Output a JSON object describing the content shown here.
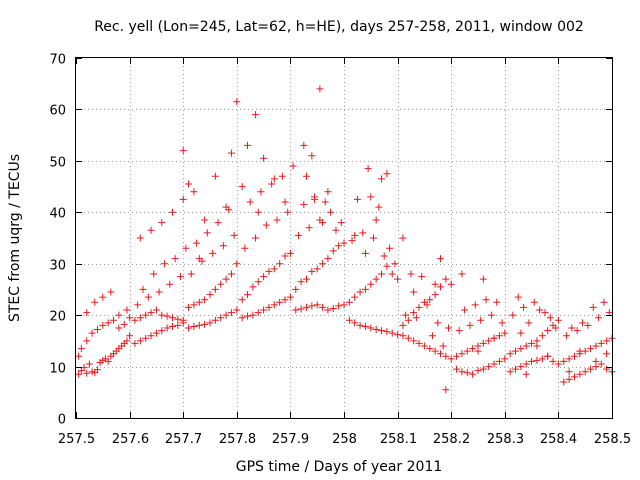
{
  "chart_data": {
    "type": "scatter",
    "title": "Rec. yell (Lon=245, Lat=62, h=HE), days 257-258, 2011, window 002",
    "xlabel": "GPS time / Days of year 2011",
    "ylabel": "STEC from uqrg / TECUs",
    "xlim": [
      257.5,
      258.5
    ],
    "ylim": [
      0,
      70
    ],
    "xticks": [
      257.5,
      257.6,
      257.7,
      257.8,
      257.9,
      258.0,
      258.1,
      258.2,
      258.3,
      258.4,
      258.5
    ],
    "xtick_labels": [
      "257.5",
      "257.6",
      "257.7",
      "257.8",
      "257.9",
      "258",
      "258.1",
      "258.2",
      "258.3",
      "258.4",
      "258.5"
    ],
    "yticks": [
      0,
      10,
      20,
      30,
      40,
      50,
      60,
      70
    ],
    "ytick_labels": [
      "0",
      "10",
      "20",
      "30",
      "40",
      "50",
      "60",
      "70"
    ],
    "grid": true,
    "marker": "+",
    "color": "#e41a1c",
    "series": [
      {
        "name": "STEC",
        "x": [
          257.505,
          257.51,
          257.515,
          257.52,
          257.525,
          257.53,
          257.535,
          257.54,
          257.545,
          257.55,
          257.555,
          257.56,
          257.565,
          257.57,
          257.575,
          257.58,
          257.585,
          257.59,
          257.595,
          257.6,
          257.51,
          257.52,
          257.53,
          257.54,
          257.55,
          257.56,
          257.57,
          257.58,
          257.59,
          257.6,
          257.505,
          257.52,
          257.535,
          257.55,
          257.565,
          257.58,
          257.595,
          257.61,
          257.62,
          257.63,
          257.64,
          257.65,
          257.66,
          257.67,
          257.68,
          257.69,
          257.7,
          257.61,
          257.62,
          257.63,
          257.64,
          257.65,
          257.66,
          257.67,
          257.68,
          257.69,
          257.7,
          257.615,
          257.635,
          257.655,
          257.675,
          257.695,
          257.625,
          257.645,
          257.665,
          257.685,
          257.705,
          257.62,
          257.64,
          257.66,
          257.68,
          257.7,
          257.71,
          257.71,
          257.72,
          257.73,
          257.74,
          257.75,
          257.76,
          257.77,
          257.78,
          257.79,
          257.8,
          257.71,
          257.72,
          257.73,
          257.74,
          257.75,
          257.76,
          257.77,
          257.78,
          257.79,
          257.8,
          257.715,
          257.735,
          257.755,
          257.775,
          257.795,
          257.725,
          257.745,
          257.765,
          257.785,
          257.7,
          257.72,
          257.74,
          257.76,
          257.78,
          257.79,
          257.73,
          257.81,
          257.82,
          257.83,
          257.84,
          257.85,
          257.86,
          257.87,
          257.88,
          257.89,
          257.9,
          257.81,
          257.82,
          257.83,
          257.84,
          257.85,
          257.86,
          257.87,
          257.88,
          257.89,
          257.9,
          257.815,
          257.835,
          257.855,
          257.875,
          257.895,
          257.825,
          257.845,
          257.865,
          257.885,
          257.8,
          257.82,
          257.835,
          257.85,
          257.87,
          257.89,
          257.81,
          257.84,
          257.91,
          257.92,
          257.93,
          257.94,
          257.95,
          257.96,
          257.97,
          257.98,
          257.99,
          258.0,
          257.91,
          257.92,
          257.93,
          257.94,
          257.95,
          257.96,
          257.97,
          257.98,
          257.99,
          258.0,
          257.915,
          257.935,
          257.955,
          257.975,
          257.995,
          257.925,
          257.945,
          257.965,
          257.985,
          257.905,
          257.925,
          257.94,
          257.955,
          257.97,
          257.93,
          257.945,
          257.96,
          258.01,
          258.02,
          258.03,
          258.04,
          258.05,
          258.06,
          258.07,
          258.08,
          258.09,
          258.1,
          258.01,
          258.02,
          258.03,
          258.04,
          258.05,
          258.06,
          258.07,
          258.08,
          258.09,
          258.1,
          258.015,
          258.035,
          258.055,
          258.075,
          258.095,
          258.025,
          258.045,
          258.065,
          258.085,
          258.02,
          258.05,
          258.07,
          258.08,
          258.06,
          258.04,
          258.11,
          258.11,
          258.12,
          258.13,
          258.14,
          258.15,
          258.16,
          258.17,
          258.18,
          258.19,
          258.2,
          258.11,
          258.12,
          258.13,
          258.14,
          258.15,
          258.16,
          258.17,
          258.18,
          258.19,
          258.2,
          258.115,
          258.135,
          258.155,
          258.175,
          258.195,
          258.125,
          258.145,
          258.165,
          258.185,
          258.18,
          258.13,
          258.17,
          258.19,
          258.21,
          258.22,
          258.23,
          258.24,
          258.25,
          258.26,
          258.27,
          258.28,
          258.29,
          258.3,
          258.21,
          258.22,
          258.23,
          258.24,
          258.25,
          258.26,
          258.27,
          258.28,
          258.29,
          258.3,
          258.215,
          258.235,
          258.255,
          258.275,
          258.295,
          258.225,
          258.245,
          258.265,
          258.285,
          258.22,
          258.26,
          258.28,
          258.25,
          258.31,
          258.32,
          258.33,
          258.34,
          258.35,
          258.36,
          258.37,
          258.38,
          258.39,
          258.4,
          258.31,
          258.32,
          258.33,
          258.34,
          258.35,
          258.36,
          258.37,
          258.38,
          258.39,
          258.4,
          258.315,
          258.335,
          258.355,
          258.375,
          258.395,
          258.325,
          258.345,
          258.365,
          258.385,
          258.33,
          258.36,
          258.38,
          258.34,
          258.41,
          258.42,
          258.43,
          258.44,
          258.45,
          258.46,
          258.47,
          258.48,
          258.49,
          258.5,
          258.41,
          258.42,
          258.43,
          258.44,
          258.45,
          258.46,
          258.47,
          258.48,
          258.49,
          258.5,
          258.415,
          258.435,
          258.455,
          258.475,
          258.495,
          258.425,
          258.445,
          258.465,
          258.485,
          258.44,
          258.47,
          258.49,
          258.42
        ],
        "y": [
          8.5,
          9.2,
          9.8,
          8.7,
          10.5,
          9.0,
          8.8,
          9.4,
          10.8,
          11.2,
          11.5,
          11.0,
          12.0,
          12.5,
          13.0,
          13.5,
          14.0,
          14.5,
          15.0,
          16.0,
          13.5,
          15.0,
          16.5,
          17.2,
          18.0,
          18.5,
          19.0,
          17.5,
          18.2,
          19.5,
          12.0,
          20.5,
          22.5,
          23.5,
          24.5,
          20.0,
          21.0,
          14.5,
          15.0,
          15.5,
          16.0,
          16.5,
          17.0,
          17.5,
          17.8,
          18.0,
          18.5,
          19.0,
          19.5,
          20.0,
          20.5,
          21.0,
          20.0,
          19.8,
          19.5,
          19.2,
          19.0,
          22.0,
          23.5,
          24.5,
          26.0,
          27.5,
          25.0,
          28.0,
          30.0,
          31.0,
          33.0,
          35.0,
          36.5,
          38.0,
          40.0,
          42.5,
          45.5,
          17.5,
          17.8,
          18.0,
          18.2,
          18.5,
          19.0,
          19.5,
          20.0,
          20.5,
          21.0,
          21.5,
          22.0,
          22.5,
          23.0,
          24.0,
          25.0,
          26.0,
          27.0,
          28.0,
          30.0,
          28.0,
          30.5,
          32.0,
          33.5,
          35.5,
          34.0,
          36.0,
          38.0,
          40.5,
          52.0,
          44.0,
          38.5,
          47.0,
          41.0,
          51.5,
          31.0,
          19.5,
          19.8,
          20.0,
          20.5,
          21.0,
          21.5,
          22.0,
          22.5,
          23.0,
          23.5,
          23.0,
          24.0,
          25.5,
          26.5,
          27.5,
          28.5,
          29.0,
          30.0,
          31.5,
          32.0,
          33.0,
          35.0,
          37.5,
          38.5,
          40.0,
          42.0,
          44.0,
          45.5,
          47.0,
          61.5,
          53.0,
          59.0,
          50.5,
          46.5,
          42.0,
          45.0,
          40.0,
          21.0,
          21.2,
          21.5,
          21.8,
          22.0,
          21.5,
          21.0,
          21.3,
          21.8,
          22.0,
          25.0,
          26.5,
          27.0,
          28.5,
          29.0,
          30.0,
          31.0,
          32.5,
          33.5,
          34.0,
          35.5,
          37.0,
          38.5,
          40.0,
          38.0,
          41.5,
          43.0,
          42.0,
          36.5,
          49.0,
          53.0,
          51.0,
          64.0,
          44.0,
          47.0,
          42.5,
          38.0,
          19.0,
          18.5,
          18.0,
          17.8,
          17.5,
          17.2,
          17.0,
          16.8,
          16.5,
          16.2,
          22.5,
          23.5,
          24.5,
          25.0,
          26.0,
          27.0,
          28.0,
          29.5,
          28.0,
          27.0,
          34.5,
          36.0,
          35.0,
          31.5,
          30.0,
          42.5,
          48.5,
          41.0,
          33.0,
          35.5,
          43.0,
          46.5,
          47.5,
          38.5,
          32.0,
          35.0,
          16.0,
          15.5,
          15.0,
          14.5,
          14.0,
          13.5,
          13.0,
          12.5,
          12.0,
          11.5,
          18.0,
          19.0,
          20.5,
          21.5,
          22.5,
          23.0,
          24.0,
          25.5,
          27.0,
          26.0,
          20.0,
          19.5,
          22.0,
          18.5,
          17.5,
          28.0,
          27.5,
          16.0,
          14.0,
          31.0,
          24.5,
          26.0,
          5.5,
          9.5,
          9.0,
          8.8,
          8.5,
          9.2,
          9.5,
          10.0,
          10.5,
          11.0,
          11.5,
          12.0,
          12.5,
          13.0,
          13.5,
          14.0,
          14.5,
          15.0,
          15.5,
          16.0,
          16.5,
          17.0,
          18.0,
          19.0,
          20.0,
          18.5,
          21.0,
          22.0,
          23.0,
          22.5,
          28.0,
          27.0,
          15.5,
          13.0,
          9.0,
          9.5,
          10.0,
          10.5,
          11.0,
          11.2,
          11.5,
          12.0,
          11.0,
          10.5,
          12.5,
          13.0,
          13.5,
          14.0,
          14.5,
          15.0,
          16.0,
          17.0,
          18.0,
          19.0,
          20.0,
          21.5,
          22.5,
          20.5,
          17.5,
          23.5,
          18.5,
          21.0,
          19.5,
          16.5,
          14.0,
          12.0,
          8.5,
          7.0,
          7.5,
          8.0,
          8.5,
          9.0,
          9.5,
          10.0,
          10.5,
          9.5,
          9.0,
          11.0,
          11.5,
          12.0,
          12.5,
          13.0,
          13.5,
          14.0,
          14.5,
          15.0,
          15.5,
          16.0,
          17.0,
          18.0,
          19.5,
          20.5,
          17.5,
          18.5,
          21.5,
          22.5,
          13.0,
          11.0,
          12.5,
          9.0
        ]
      }
    ]
  }
}
